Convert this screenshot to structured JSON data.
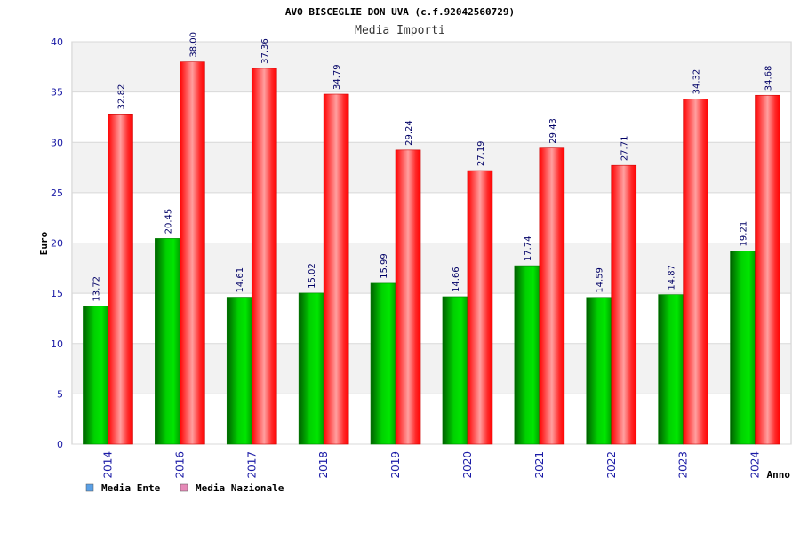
{
  "chart_data": {
    "type": "bar",
    "title": "AVO BISCEGLIE DON UVA (c.f.92042560729)",
    "subtitle": "Media Importi",
    "xlabel": "Anno",
    "ylabel": "Euro",
    "ylim": [
      0,
      40
    ],
    "yticks": [
      0,
      5,
      10,
      15,
      20,
      25,
      30,
      35,
      40
    ],
    "categories": [
      "2014",
      "2016",
      "2017",
      "2018",
      "2019",
      "2020",
      "2021",
      "2022",
      "2023",
      "2024"
    ],
    "series": [
      {
        "name": "Media Ente",
        "values": [
          13.72,
          20.45,
          14.61,
          15.02,
          15.99,
          14.66,
          17.74,
          14.59,
          14.87,
          19.21
        ],
        "labels": [
          "13.72",
          "20.45",
          "14.61",
          "15.02",
          "15.99",
          "14.66",
          "17.74",
          "14.59",
          "14.87",
          "19.21"
        ]
      },
      {
        "name": "Media Nazionale",
        "values": [
          32.82,
          38.0,
          37.36,
          34.79,
          29.24,
          27.19,
          29.43,
          27.71,
          34.32,
          34.68
        ],
        "labels": [
          "32.82",
          "38.00",
          "37.36",
          "34.79",
          "29.24",
          "27.19",
          "29.43",
          "27.71",
          "34.32",
          "34.68"
        ]
      }
    ],
    "legend": [
      {
        "name": "Media Ente",
        "color": "#5aa0e6"
      },
      {
        "name": "Media Nazionale",
        "color": "#e68ab8"
      }
    ],
    "legend_position": "bottom-left",
    "grid": true,
    "colors": {
      "ente": "#00b400",
      "nazionale": "#ff0000"
    }
  }
}
